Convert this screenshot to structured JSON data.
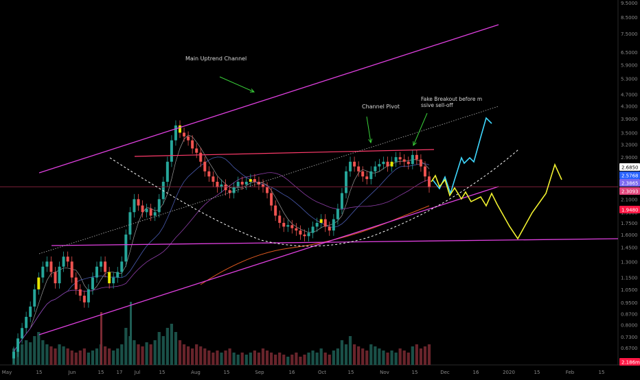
{
  "chart_data": {
    "type": "candlestick",
    "title": "",
    "xlabel": "",
    "ylabel": "",
    "y_scale": "log",
    "grid": false,
    "ylim": [
      0.6,
      9.5
    ],
    "x_ticks": [
      "May",
      "15",
      "Jun",
      "15",
      "17",
      "Jul",
      "15",
      "Aug",
      "15",
      "Sep",
      "16",
      "Oct",
      "15",
      "Nov",
      "15",
      "Dec",
      "16",
      "2020",
      "15",
      "Feb",
      "15"
    ],
    "y_ticks": [
      "9.5000",
      "8.5000",
      "7.5000",
      "6.5000",
      "5.9000",
      "5.3000",
      "4.7000",
      "4.3000",
      "3.9000",
      "3.5000",
      "3.2000",
      "2.9000",
      "2.6850",
      "2.3865",
      "2.1000",
      "1.9000",
      "1.7500",
      "1.6000",
      "1.4500",
      "1.3000",
      "1.1500",
      "1.0500",
      "0.9500",
      "0.8700",
      "0.8000",
      "0.7300",
      "0.6700"
    ],
    "price_labels": [
      {
        "value": "2.6850",
        "color": "#ffffff"
      },
      {
        "value": "2.5768",
        "color": "#2962ff"
      },
      {
        "value": "2.3865",
        "color": "#7b68ee"
      },
      {
        "value": "2.3093",
        "color": "#e0457b"
      },
      {
        "value": "1.9480",
        "color": "#ff1744"
      },
      {
        "value": "2.186m",
        "color": "#ff1744"
      }
    ],
    "annotations": [
      "Main Uptrend Channel",
      "Channel Pivot",
      "Fake Breakout before massive sell-off"
    ],
    "candles_close": [
      0.65,
      0.72,
      0.78,
      0.85,
      0.92,
      1.05,
      1.15,
      1.25,
      1.3,
      1.2,
      1.1,
      1.25,
      1.35,
      1.3,
      1.15,
      1.05,
      1.0,
      0.95,
      1.05,
      1.15,
      1.25,
      1.3,
      1.2,
      1.1,
      1.15,
      1.2,
      1.3,
      1.6,
      1.9,
      2.1,
      2.0,
      1.9,
      1.95,
      1.85,
      1.9,
      2.1,
      2.4,
      2.8,
      3.3,
      3.7,
      3.5,
      3.4,
      3.3,
      3.1,
      3.0,
      2.8,
      2.6,
      2.5,
      2.4,
      2.3,
      2.35,
      2.25,
      2.2,
      2.3,
      2.4,
      2.35,
      2.4,
      2.45,
      2.4,
      2.35,
      2.3,
      2.2,
      2.0,
      1.85,
      1.75,
      1.7,
      1.72,
      1.68,
      1.65,
      1.6,
      1.58,
      1.62,
      1.7,
      1.75,
      1.8,
      1.7,
      1.65,
      1.8,
      1.95,
      2.2,
      2.6,
      2.8,
      2.7,
      2.6,
      2.5,
      2.45,
      2.6,
      2.7,
      2.75,
      2.8,
      2.7,
      2.8,
      2.9,
      2.85,
      2.8,
      2.75,
      2.95,
      2.85,
      2.7,
      2.5,
      2.3
    ],
    "volume": [
      0.4,
      0.35,
      0.5,
      0.6,
      0.55,
      0.7,
      0.8,
      0.6,
      0.5,
      0.45,
      0.4,
      0.5,
      0.45,
      0.4,
      0.35,
      0.3,
      0.35,
      0.4,
      0.3,
      0.35,
      0.4,
      0.5,
      0.45,
      0.4,
      0.35,
      0.4,
      0.5,
      0.9,
      0.7,
      0.6,
      0.5,
      0.45,
      0.55,
      0.5,
      0.6,
      0.8,
      0.7,
      0.9,
      1.0,
      0.8,
      0.6,
      0.5,
      0.45,
      0.4,
      0.5,
      0.45,
      0.4,
      0.35,
      0.3,
      0.35,
      0.3,
      0.35,
      0.4,
      0.3,
      0.25,
      0.3,
      0.25,
      0.3,
      0.35,
      0.3,
      0.4,
      0.35,
      0.3,
      0.25,
      0.3,
      0.25,
      0.2,
      0.25,
      0.3,
      0.2,
      0.25,
      0.3,
      0.35,
      0.3,
      0.4,
      0.3,
      0.25,
      0.35,
      0.4,
      0.6,
      0.5,
      0.7,
      0.5,
      0.45,
      0.4,
      0.35,
      0.5,
      0.45,
      0.4,
      0.35,
      0.3,
      0.35,
      0.3,
      0.4,
      0.35,
      0.3,
      0.45,
      0.5,
      0.4,
      0.45,
      0.5
    ]
  }
}
